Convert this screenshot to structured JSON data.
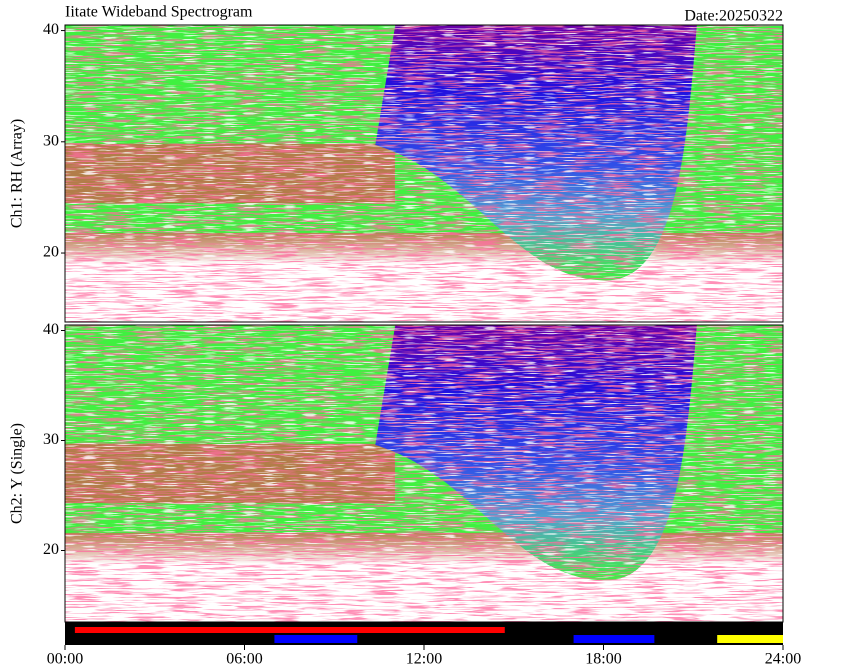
{
  "chart_data": {
    "type": "heatmap",
    "title": "Iitate Wideband Spectrogram",
    "date": "Date:20250322",
    "xlim": [
      0,
      24
    ],
    "xticks": [
      {
        "value": 0,
        "label": "00:00"
      },
      {
        "value": 6,
        "label": "06:00"
      },
      {
        "value": 12,
        "label": "12:00"
      },
      {
        "value": 18,
        "label": "18:00"
      },
      {
        "value": 24,
        "label": "24:00"
      }
    ],
    "panels": [
      {
        "ylabel": "Ch1: RH (Array)",
        "ylim": [
          13.8,
          40.5
        ],
        "yticks": [
          20,
          30,
          40
        ]
      },
      {
        "ylabel": "Ch2: Y (Single)",
        "ylim": [
          13.5,
          40.5
        ],
        "yticks": [
          20,
          30,
          40
        ]
      }
    ],
    "status": [
      {
        "color": "#ff0000",
        "intervals": [
          [
            0.33,
            14.7
          ]
        ]
      },
      {
        "color": "#0000ff",
        "intervals": [
          [
            7.0,
            9.77
          ],
          [
            17.0,
            19.7
          ]
        ]
      },
      {
        "color": "#ffff00",
        "intervals": [
          [
            21.8,
            24
          ]
        ]
      }
    ]
  }
}
